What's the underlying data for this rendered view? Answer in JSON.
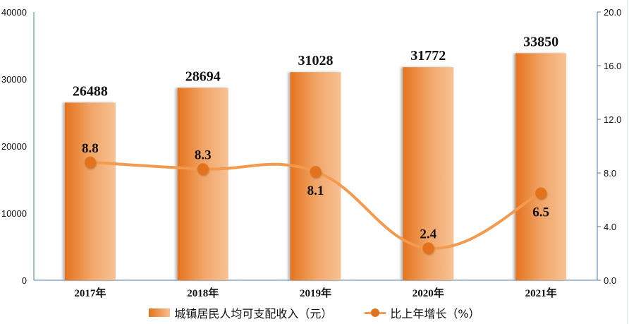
{
  "chart_data": {
    "type": "bar+line",
    "title": "",
    "categories": [
      "2017年",
      "2018年",
      "2019年",
      "2020年",
      "2021年"
    ],
    "series": [
      {
        "name": "城镇居民人均可支配收入（元）",
        "type": "bar",
        "axis": "left",
        "values": [
          26488,
          28694,
          31028,
          31772,
          33850
        ],
        "color": "#e8781f"
      },
      {
        "name": "比上年增长（%）",
        "type": "line",
        "axis": "right",
        "values": [
          8.8,
          8.3,
          8.1,
          2.4,
          6.5
        ],
        "color": "#f39a4e",
        "marker_color": "#e2731c"
      }
    ],
    "left_axis": {
      "ylim": [
        0,
        40000
      ],
      "ticks": [
        "0",
        "10000",
        "20000",
        "30000",
        "40000"
      ]
    },
    "right_axis": {
      "ylim": [
        0,
        20
      ],
      "ticks": [
        "0.0",
        "4.0",
        "8.0",
        "12.0",
        "16.0",
        "20.0"
      ]
    },
    "xlabel": "",
    "ylabel": "",
    "grid": false,
    "legend_position": "bottom"
  },
  "legend": {
    "bar_label": "城镇居民人均可支配收入（元）",
    "line_label": "比上年增长（%）"
  }
}
